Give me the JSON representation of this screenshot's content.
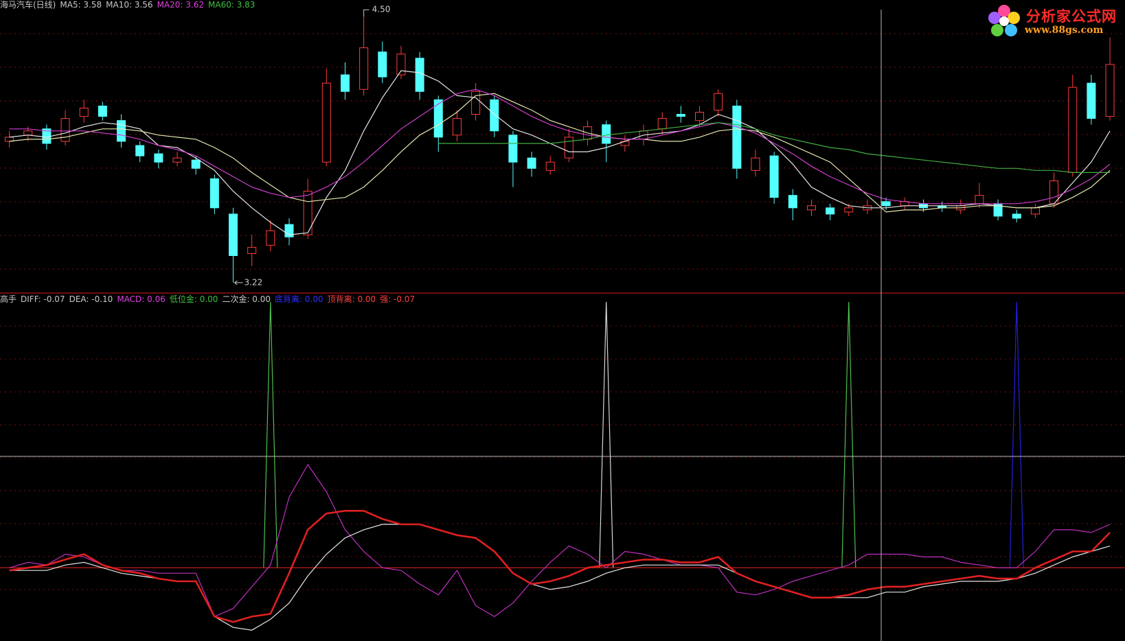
{
  "price_header": [
    {
      "text": "海马汽车(日线)",
      "color": "#c8c8c8"
    },
    {
      "text": "MA5: 3.58",
      "color": "#c8c8c8"
    },
    {
      "text": "MA10: 3.56",
      "color": "#c8c8c8"
    },
    {
      "text": "MA20: 3.62",
      "color": "#e040e0"
    },
    {
      "text": "MA60: 3.83",
      "color": "#40c040"
    }
  ],
  "indicator_header": [
    {
      "text": "高手",
      "color": "#c8c8c8"
    },
    {
      "text": "DIFF: -0.07",
      "color": "#c8c8c8"
    },
    {
      "text": "DEA: -0.10",
      "color": "#c8c8c8"
    },
    {
      "text": "MACD: 0.06",
      "color": "#e040e0"
    },
    {
      "text": "低位金: 0.00",
      "color": "#40c040"
    },
    {
      "text": "二次金: 0.00",
      "color": "#c8c8c8"
    },
    {
      "text": "底背离: 0.00",
      "color": "#3030ff"
    },
    {
      "text": "顶背离: 0.00",
      "color": "#ff4040"
    },
    {
      "text": "强: -0.07",
      "color": "#ff4040"
    }
  ],
  "logo": {
    "title": "分析家公式网",
    "url": "www.88gs.com"
  },
  "chart_data": [
    {
      "type": "candlestick",
      "ylim": [
        3.17,
        4.58
      ],
      "up_color": "#ff3c3c",
      "down_color": "#54ffff",
      "open": [
        3.9,
        3.93,
        3.96,
        3.9,
        4.02,
        4.07,
        4.0,
        3.88,
        3.84,
        3.8,
        3.81,
        3.72,
        3.55,
        3.36,
        3.4,
        3.5,
        3.45,
        3.8,
        4.22,
        4.15,
        4.33,
        4.22,
        4.3,
        4.1,
        3.93,
        4.03,
        4.1,
        3.93,
        3.82,
        3.76,
        3.82,
        3.91,
        3.98,
        3.88,
        3.91,
        3.96,
        4.03,
        4.0,
        4.05,
        4.07,
        3.76,
        3.83,
        3.64,
        3.57,
        3.58,
        3.56,
        3.57,
        3.61,
        3.59,
        3.6,
        3.59,
        3.57,
        3.6,
        3.6,
        3.55,
        3.55,
        3.6,
        3.75,
        4.18,
        4.02
      ],
      "high": [
        3.95,
        3.97,
        3.98,
        4.05,
        4.1,
        4.09,
        4.03,
        3.9,
        3.86,
        3.85,
        3.83,
        3.74,
        3.58,
        3.45,
        3.52,
        3.53,
        3.72,
        4.25,
        4.28,
        4.5,
        4.38,
        4.36,
        4.33,
        4.12,
        4.05,
        4.18,
        4.12,
        3.95,
        3.85,
        3.83,
        3.96,
        4.0,
        4.0,
        3.93,
        3.98,
        4.04,
        4.07,
        4.07,
        4.15,
        4.1,
        3.86,
        3.85,
        3.67,
        3.62,
        3.6,
        3.6,
        3.62,
        3.63,
        3.63,
        3.62,
        3.61,
        3.62,
        3.7,
        3.62,
        3.57,
        3.6,
        3.75,
        4.22,
        4.22,
        4.4
      ],
      "low": [
        3.87,
        3.9,
        3.86,
        3.88,
        3.99,
        4.0,
        3.87,
        3.8,
        3.77,
        3.78,
        3.74,
        3.55,
        3.22,
        3.3,
        3.37,
        3.4,
        3.43,
        3.78,
        4.1,
        4.12,
        4.18,
        4.2,
        4.1,
        3.85,
        3.9,
        4.0,
        3.92,
        3.68,
        3.73,
        3.74,
        3.8,
        3.88,
        3.8,
        3.85,
        3.88,
        3.93,
        3.99,
        3.97,
        4.02,
        3.72,
        3.73,
        3.6,
        3.52,
        3.54,
        3.52,
        3.54,
        3.55,
        3.57,
        3.57,
        3.56,
        3.56,
        3.55,
        3.58,
        3.52,
        3.51,
        3.53,
        3.58,
        3.73,
        3.98,
        4.0
      ],
      "close": [
        3.92,
        3.95,
        3.89,
        4.01,
        4.06,
        4.02,
        3.9,
        3.83,
        3.8,
        3.82,
        3.77,
        3.58,
        3.35,
        3.39,
        3.47,
        3.44,
        3.66,
        4.18,
        4.14,
        4.35,
        4.21,
        4.32,
        4.14,
        3.92,
        4.01,
        4.14,
        3.95,
        3.8,
        3.77,
        3.8,
        3.92,
        3.97,
        3.89,
        3.9,
        3.95,
        4.01,
        4.02,
        4.04,
        4.13,
        3.77,
        3.82,
        3.63,
        3.58,
        3.59,
        3.55,
        3.58,
        3.59,
        3.59,
        3.61,
        3.58,
        3.58,
        3.59,
        3.64,
        3.54,
        3.53,
        3.58,
        3.71,
        4.16,
        4.01,
        4.27
      ],
      "series": [
        {
          "color": "#e8e8e8",
          "values": [
            3.92,
            3.93,
            3.92,
            3.94,
            3.97,
            3.99,
            3.98,
            3.96,
            3.88,
            3.87,
            3.82,
            3.76,
            3.66,
            3.58,
            3.51,
            3.45,
            3.46,
            3.63,
            3.76,
            3.95,
            4.11,
            4.24,
            4.23,
            4.19,
            4.12,
            4.11,
            4.03,
            3.96,
            3.93,
            3.89,
            3.85,
            3.85,
            3.87,
            3.9,
            3.93,
            3.94,
            3.95,
            3.98,
            4.03,
            4.0,
            3.96,
            3.88,
            3.79,
            3.68,
            3.63,
            3.59,
            3.58,
            3.58,
            3.59,
            3.59,
            3.59,
            3.59,
            3.6,
            3.59,
            3.58,
            3.58,
            3.6,
            3.7,
            3.8,
            3.95
          ]
        },
        {
          "color": "#e8e8b0",
          "values": [
            3.9,
            3.91,
            3.91,
            3.92,
            3.94,
            3.96,
            3.96,
            3.95,
            3.93,
            3.92,
            3.91,
            3.87,
            3.82,
            3.75,
            3.69,
            3.63,
            3.61,
            3.62,
            3.63,
            3.68,
            3.76,
            3.85,
            3.93,
            3.98,
            4.04,
            4.12,
            4.13,
            4.09,
            4.05,
            4.0,
            3.97,
            3.94,
            3.92,
            3.91,
            3.91,
            3.9,
            3.9,
            3.92,
            3.95,
            3.96,
            3.95,
            3.92,
            3.88,
            3.84,
            3.8,
            3.72,
            3.64,
            3.56,
            3.57,
            3.57,
            3.58,
            3.58,
            3.59,
            3.59,
            3.58,
            3.58,
            3.59,
            3.63,
            3.68,
            3.76
          ]
        },
        {
          "color": "#d040d0",
          "values": [
            3.96,
            3.96,
            3.95,
            3.95,
            3.95,
            3.94,
            3.93,
            3.91,
            3.88,
            3.86,
            3.83,
            3.78,
            3.73,
            3.68,
            3.65,
            3.63,
            3.64,
            3.68,
            3.73,
            3.8,
            3.88,
            3.96,
            4.02,
            4.08,
            4.13,
            4.15,
            4.12,
            4.07,
            4.02,
            3.98,
            3.95,
            3.93,
            3.92,
            3.91,
            3.91,
            3.93,
            3.95,
            3.97,
            3.99,
            3.97,
            3.94,
            3.89,
            3.84,
            3.78,
            3.73,
            3.69,
            3.65,
            3.62,
            3.61,
            3.6,
            3.6,
            3.6,
            3.6,
            3.6,
            3.6,
            3.61,
            3.63,
            3.67,
            3.72,
            3.79
          ]
        },
        {
          "color": "#40b040",
          "values": [
            null,
            null,
            null,
            null,
            null,
            null,
            null,
            null,
            null,
            null,
            null,
            null,
            null,
            null,
            null,
            null,
            null,
            null,
            null,
            null,
            null,
            null,
            null,
            3.89,
            3.89,
            3.89,
            3.89,
            3.89,
            3.89,
            3.89,
            3.9,
            3.91,
            3.93,
            3.94,
            3.95,
            3.96,
            3.97,
            3.98,
            3.99,
            3.98,
            3.96,
            3.93,
            3.91,
            3.89,
            3.87,
            3.86,
            3.84,
            3.83,
            3.82,
            3.81,
            3.8,
            3.79,
            3.78,
            3.77,
            3.77,
            3.76,
            3.76,
            3.75,
            3.75,
            3.75
          ]
        }
      ],
      "annotations": [
        {
          "text": "4.50"
        },
        {
          "text": "3.22"
        }
      ]
    },
    {
      "type": "line",
      "ylim": [
        -0.27,
        1.01
      ],
      "series": [
        {
          "color": "#c030c0",
          "line_width": 1.2,
          "values": [
            0.0,
            0.02,
            0.01,
            0.05,
            0.04,
            0.01,
            -0.01,
            -0.01,
            -0.02,
            -0.02,
            -0.02,
            -0.18,
            -0.15,
            -0.07,
            0.01,
            0.26,
            0.38,
            0.28,
            0.14,
            0.06,
            0.0,
            -0.01,
            -0.06,
            -0.1,
            -0.01,
            -0.14,
            -0.18,
            -0.13,
            -0.05,
            0.02,
            0.08,
            0.05,
            0.0,
            0.06,
            0.05,
            0.03,
            0.01,
            0.01,
            0.0,
            -0.09,
            -0.1,
            -0.08,
            -0.05,
            -0.03,
            -0.01,
            0.01,
            0.05,
            0.05,
            0.05,
            0.04,
            0.04,
            0.02,
            0.01,
            0.0,
            0.0,
            0.06,
            0.14,
            0.14,
            0.13,
            0.16
          ]
        },
        {
          "color": "#e8e8e8",
          "line_width": 1.2,
          "values": [
            -0.01,
            -0.01,
            -0.01,
            0.01,
            0.02,
            0.0,
            -0.02,
            -0.03,
            -0.04,
            -0.05,
            -0.05,
            -0.18,
            -0.22,
            -0.23,
            -0.19,
            -0.13,
            -0.03,
            0.05,
            0.11,
            0.14,
            0.16,
            0.16,
            0.16,
            0.14,
            0.12,
            0.11,
            0.06,
            -0.02,
            -0.06,
            -0.08,
            -0.07,
            -0.05,
            -0.02,
            0.0,
            0.01,
            0.01,
            0.01,
            0.01,
            0.01,
            -0.02,
            -0.05,
            -0.07,
            -0.09,
            -0.11,
            -0.11,
            -0.11,
            -0.11,
            -0.09,
            -0.09,
            -0.07,
            -0.06,
            -0.05,
            -0.05,
            -0.05,
            -0.04,
            -0.02,
            0.01,
            0.04,
            0.06,
            0.08
          ]
        },
        {
          "color": "#e02020",
          "line_width": 2.6,
          "values": [
            -0.01,
            0.0,
            0.01,
            0.03,
            0.05,
            0.01,
            -0.01,
            -0.02,
            -0.04,
            -0.05,
            -0.05,
            -0.18,
            -0.2,
            -0.18,
            -0.17,
            -0.02,
            0.14,
            0.2,
            0.21,
            0.21,
            0.18,
            0.16,
            0.16,
            0.14,
            0.12,
            0.11,
            0.06,
            -0.02,
            -0.06,
            -0.05,
            -0.03,
            0.0,
            0.01,
            0.02,
            0.03,
            0.03,
            0.02,
            0.02,
            0.04,
            -0.02,
            -0.05,
            -0.07,
            -0.09,
            -0.11,
            -0.11,
            -0.1,
            -0.08,
            -0.07,
            -0.07,
            -0.06,
            -0.05,
            -0.04,
            -0.03,
            -0.04,
            -0.04,
            0.0,
            0.03,
            0.06,
            0.06,
            0.13
          ]
        }
      ],
      "spikes": [
        {
          "x": 14,
          "value": 0.98,
          "color": "#50c050"
        },
        {
          "x": 32,
          "value": 0.98,
          "color": "#d8d8d8"
        },
        {
          "x": 45,
          "value": 0.98,
          "color": "#50c050"
        },
        {
          "x": 54,
          "value": 0.98,
          "color": "#2020e0"
        }
      ]
    }
  ]
}
